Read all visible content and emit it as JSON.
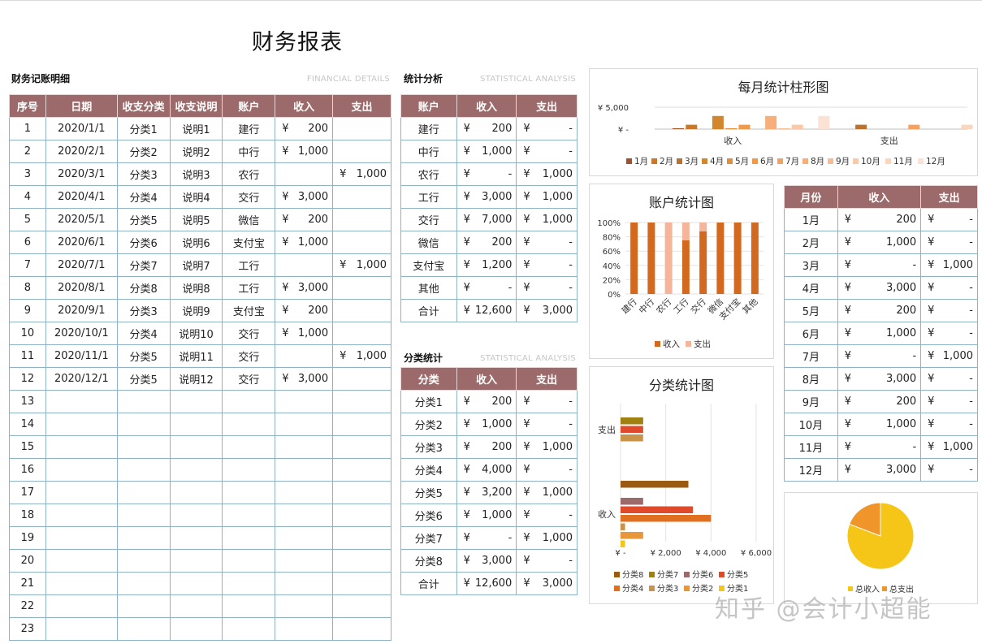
{
  "title": "财务报表",
  "watermark": "知乎 @会计小超能",
  "colors": {
    "header_bg": "#9c6a6a",
    "border": "#8eb3c4",
    "income": "#d2691e",
    "expense": "#f4b59a"
  },
  "details": {
    "heading": "财务记账明细",
    "heading_en": "FINANCIAL  DETAILS",
    "columns": [
      "序号",
      "日期",
      "收支分类",
      "收支说明",
      "账户",
      "收入",
      "支出"
    ],
    "currency": "¥",
    "rows": [
      {
        "no": "1",
        "date": "2020/1/1",
        "cat": "分类1",
        "desc": "说明1",
        "acct": "建行",
        "income": "200",
        "expense": ""
      },
      {
        "no": "2",
        "date": "2020/2/1",
        "cat": "分类2",
        "desc": "说明2",
        "acct": "中行",
        "income": "1,000",
        "expense": ""
      },
      {
        "no": "3",
        "date": "2020/3/1",
        "cat": "分类3",
        "desc": "说明3",
        "acct": "农行",
        "income": "",
        "expense": "1,000"
      },
      {
        "no": "4",
        "date": "2020/4/1",
        "cat": "分类4",
        "desc": "说明4",
        "acct": "交行",
        "income": "3,000",
        "expense": ""
      },
      {
        "no": "5",
        "date": "2020/5/1",
        "cat": "分类5",
        "desc": "说明5",
        "acct": "微信",
        "income": "200",
        "expense": ""
      },
      {
        "no": "6",
        "date": "2020/6/1",
        "cat": "分类6",
        "desc": "说明6",
        "acct": "支付宝",
        "income": "1,000",
        "expense": ""
      },
      {
        "no": "7",
        "date": "2020/7/1",
        "cat": "分类7",
        "desc": "说明7",
        "acct": "工行",
        "income": "",
        "expense": "1,000"
      },
      {
        "no": "8",
        "date": "2020/8/1",
        "cat": "分类8",
        "desc": "说明8",
        "acct": "工行",
        "income": "3,000",
        "expense": ""
      },
      {
        "no": "9",
        "date": "2020/9/1",
        "cat": "分类3",
        "desc": "说明9",
        "acct": "支付宝",
        "income": "200",
        "expense": ""
      },
      {
        "no": "10",
        "date": "2020/10/1",
        "cat": "分类4",
        "desc": "说明10",
        "acct": "交行",
        "income": "1,000",
        "expense": ""
      },
      {
        "no": "11",
        "date": "2020/11/1",
        "cat": "分类5",
        "desc": "说明11",
        "acct": "交行",
        "income": "",
        "expense": "1,000"
      },
      {
        "no": "12",
        "date": "2020/12/1",
        "cat": "分类5",
        "desc": "说明12",
        "acct": "交行",
        "income": "3,000",
        "expense": ""
      },
      {
        "no": "13",
        "date": "",
        "cat": "",
        "desc": "",
        "acct": "",
        "income": "",
        "expense": ""
      },
      {
        "no": "14",
        "date": "",
        "cat": "",
        "desc": "",
        "acct": "",
        "income": "",
        "expense": ""
      },
      {
        "no": "15",
        "date": "",
        "cat": "",
        "desc": "",
        "acct": "",
        "income": "",
        "expense": ""
      },
      {
        "no": "16",
        "date": "",
        "cat": "",
        "desc": "",
        "acct": "",
        "income": "",
        "expense": ""
      },
      {
        "no": "17",
        "date": "",
        "cat": "",
        "desc": "",
        "acct": "",
        "income": "",
        "expense": ""
      },
      {
        "no": "18",
        "date": "",
        "cat": "",
        "desc": "",
        "acct": "",
        "income": "",
        "expense": ""
      },
      {
        "no": "19",
        "date": "",
        "cat": "",
        "desc": "",
        "acct": "",
        "income": "",
        "expense": ""
      },
      {
        "no": "20",
        "date": "",
        "cat": "",
        "desc": "",
        "acct": "",
        "income": "",
        "expense": ""
      },
      {
        "no": "21",
        "date": "",
        "cat": "",
        "desc": "",
        "acct": "",
        "income": "",
        "expense": ""
      },
      {
        "no": "22",
        "date": "",
        "cat": "",
        "desc": "",
        "acct": "",
        "income": "",
        "expense": ""
      },
      {
        "no": "23",
        "date": "",
        "cat": "",
        "desc": "",
        "acct": "",
        "income": "",
        "expense": ""
      }
    ]
  },
  "stats": {
    "heading": "统计分析",
    "heading_en": "STATISTICAL ANALYSIS",
    "columns": [
      "账户",
      "收入",
      "支出"
    ],
    "rows": [
      {
        "name": "建行",
        "income": "200",
        "expense": "-"
      },
      {
        "name": "中行",
        "income": "1,000",
        "expense": "-"
      },
      {
        "name": "农行",
        "income": "-",
        "expense": "1,000"
      },
      {
        "name": "工行",
        "income": "3,000",
        "expense": "1,000"
      },
      {
        "name": "交行",
        "income": "7,000",
        "expense": "1,000"
      },
      {
        "name": "微信",
        "income": "200",
        "expense": "-"
      },
      {
        "name": "支付宝",
        "income": "1,200",
        "expense": "-"
      },
      {
        "name": "其他",
        "income": "-",
        "expense": "-"
      },
      {
        "name": "合计",
        "income": "12,600",
        "expense": "3,000"
      }
    ]
  },
  "cats": {
    "heading": "分类统计",
    "heading_en": "STATISTICAL ANALYSIS",
    "columns": [
      "分类",
      "收入",
      "支出"
    ],
    "rows": [
      {
        "name": "分类1",
        "income": "200",
        "expense": "-"
      },
      {
        "name": "分类2",
        "income": "1,000",
        "expense": "-"
      },
      {
        "name": "分类3",
        "income": "200",
        "expense": "1,000"
      },
      {
        "name": "分类4",
        "income": "4,000",
        "expense": "-"
      },
      {
        "name": "分类5",
        "income": "3,200",
        "expense": "1,000"
      },
      {
        "name": "分类6",
        "income": "1,000",
        "expense": "-"
      },
      {
        "name": "分类7",
        "income": "-",
        "expense": "1,000"
      },
      {
        "name": "分类8",
        "income": "3,000",
        "expense": "-"
      },
      {
        "name": "合计",
        "income": "12,600",
        "expense": "3,000"
      }
    ]
  },
  "monthly": {
    "columns": [
      "月份",
      "收入",
      "支出"
    ],
    "rows": [
      {
        "name": "1月",
        "income": "200",
        "expense": "-"
      },
      {
        "name": "2月",
        "income": "1,000",
        "expense": "-"
      },
      {
        "name": "3月",
        "income": "-",
        "expense": "1,000"
      },
      {
        "name": "4月",
        "income": "3,000",
        "expense": "-"
      },
      {
        "name": "5月",
        "income": "200",
        "expense": "-"
      },
      {
        "name": "6月",
        "income": "1,000",
        "expense": "-"
      },
      {
        "name": "7月",
        "income": "-",
        "expense": "1,000"
      },
      {
        "name": "8月",
        "income": "3,000",
        "expense": "-"
      },
      {
        "name": "9月",
        "income": "200",
        "expense": "-"
      },
      {
        "name": "10月",
        "income": "1,000",
        "expense": "-"
      },
      {
        "name": "11月",
        "income": "-",
        "expense": "1,000"
      },
      {
        "name": "12月",
        "income": "3,000",
        "expense": "-"
      }
    ]
  },
  "chart_data": [
    {
      "type": "bar",
      "title": "每月统计柱形图",
      "categories": [
        "收入",
        "支出"
      ],
      "yticks": [
        "¥ 5,000",
        "¥ -"
      ],
      "ylim": [
        0,
        5000
      ],
      "legend_position": "bottom",
      "series": [
        {
          "name": "1月",
          "values": [
            200,
            0
          ],
          "color": "#a0522d"
        },
        {
          "name": "2月",
          "values": [
            1000,
            0
          ],
          "color": "#c8782a"
        },
        {
          "name": "3月",
          "values": [
            0,
            1000
          ],
          "color": "#b87333"
        },
        {
          "name": "4月",
          "values": [
            3000,
            0
          ],
          "color": "#d2862e"
        },
        {
          "name": "5月",
          "values": [
            200,
            0
          ],
          "color": "#e0903a"
        },
        {
          "name": "6月",
          "values": [
            1000,
            0
          ],
          "color": "#ee9a4d"
        },
        {
          "name": "7月",
          "values": [
            0,
            1000
          ],
          "color": "#f4a261"
        },
        {
          "name": "8月",
          "values": [
            3000,
            0
          ],
          "color": "#f6ae7a"
        },
        {
          "name": "9月",
          "values": [
            200,
            0
          ],
          "color": "#f8bc94"
        },
        {
          "name": "10月",
          "values": [
            1000,
            0
          ],
          "color": "#f9c9aa"
        },
        {
          "name": "11月",
          "values": [
            0,
            1000
          ],
          "color": "#fad6c0"
        },
        {
          "name": "12月",
          "values": [
            3000,
            0
          ],
          "color": "#fce2d4"
        }
      ]
    },
    {
      "type": "bar",
      "title": "账户统计图",
      "stacked": "percent",
      "categories": [
        "建行",
        "中行",
        "农行",
        "工行",
        "交行",
        "微信",
        "支付宝",
        "其他"
      ],
      "yticks": [
        "100%",
        "80%",
        "60%",
        "40%",
        "20%",
        "0%"
      ],
      "ylim": [
        0,
        100
      ],
      "legend_position": "bottom",
      "series": [
        {
          "name": "收入",
          "values": [
            100,
            100,
            0,
            75,
            87.5,
            100,
            100,
            100
          ],
          "color": "#d2691e"
        },
        {
          "name": "支出",
          "values": [
            0,
            0,
            100,
            25,
            12.5,
            0,
            0,
            0
          ],
          "color": "#f4b59a"
        }
      ]
    },
    {
      "type": "bar",
      "orientation": "horizontal",
      "title": "分类统计图",
      "categories": [
        "收入",
        "支出"
      ],
      "xticks": [
        "¥ -",
        "¥ 2,000",
        "¥ 4,000",
        "¥ 6,000"
      ],
      "xlim": [
        0,
        6000
      ],
      "legend_position": "bottom",
      "series": [
        {
          "name": "分类1",
          "values": [
            200,
            0
          ],
          "color": "#f5c518"
        },
        {
          "name": "分类2",
          "values": [
            1000,
            0
          ],
          "color": "#e8963a"
        },
        {
          "name": "分类3",
          "values": [
            200,
            1000
          ],
          "color": "#c9944a"
        },
        {
          "name": "分类4",
          "values": [
            4000,
            0
          ],
          "color": "#e07020"
        },
        {
          "name": "分类5",
          "values": [
            3200,
            1000
          ],
          "color": "#e04a2a"
        },
        {
          "name": "分类6",
          "values": [
            1000,
            0
          ],
          "color": "#9c6a6a"
        },
        {
          "name": "分类7",
          "values": [
            0,
            1000
          ],
          "color": "#a08010"
        },
        {
          "name": "分类8",
          "values": [
            3000,
            0
          ],
          "color": "#9a5a10"
        }
      ]
    },
    {
      "type": "pie",
      "title": "",
      "legend_position": "bottom",
      "series": [
        {
          "name": "总收入",
          "value": 12600,
          "color": "#f5c518"
        },
        {
          "name": "总支出",
          "value": 3000,
          "color": "#f0952a"
        }
      ]
    }
  ]
}
